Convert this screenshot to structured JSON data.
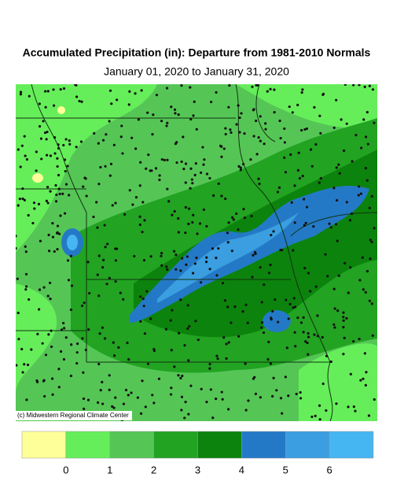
{
  "header": {
    "title": "Accumulated Precipitation (in): Departure from 1981-2010 Normals",
    "subtitle": "January 01, 2020 to January 31, 2020"
  },
  "map": {
    "credit": "(c) Midwestern Regional Climate Center"
  },
  "legend": {
    "colors": [
      "#ffff99",
      "#66ee5a",
      "#55c655",
      "#22a322",
      "#0c830c",
      "#2479c6",
      "#3a9ee0",
      "#46b6f2"
    ],
    "ticks": [
      0,
      1,
      2,
      3,
      4,
      5,
      6
    ]
  }
}
